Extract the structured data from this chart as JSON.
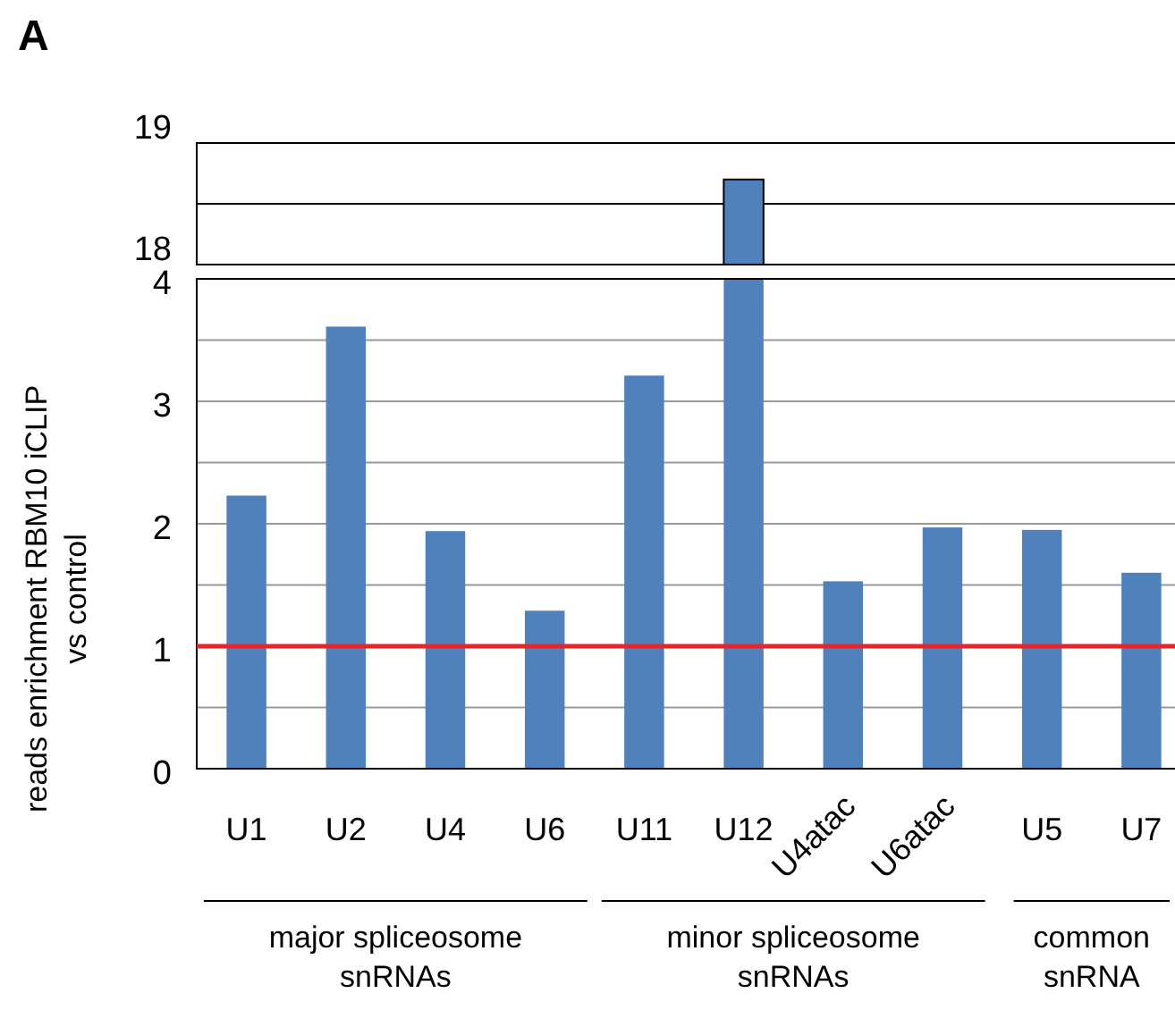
{
  "chart_data": [
    {
      "type": "bar",
      "title": "A",
      "categories": [
        null,
        null,
        null,
        null,
        null,
        null,
        null,
        null,
        null,
        null
      ],
      "values": [
        null,
        null,
        null,
        null,
        null,
        18.7,
        null,
        null,
        null,
        null
      ],
      "color": "#4f81bd",
      "ylim": [
        18,
        19
      ],
      "yticks": [
        18,
        {
          "value": 18.5,
          "label": null
        },
        19
      ],
      "grid": "y",
      "tick_labels": "y"
    },
    {
      "type": "bar",
      "ylabel": "reads enrichment RBM10 iCLIP vs control",
      "categories": [
        "U1",
        "U2",
        "U4",
        "U6",
        "U11",
        "U12",
        "U4atac",
        "U6atac",
        "U5",
        "U7"
      ],
      "values": [
        2.23,
        3.61,
        1.94,
        1.29,
        3.21,
        4,
        1.53,
        1.97,
        1.95,
        1.6
      ],
      "color": "#4f81bd",
      "ylim": [
        0,
        4
      ],
      "yticks": [
        0,
        {
          "value": 0.5,
          "label": null
        },
        1,
        {
          "value": 1.5,
          "label": null
        },
        2,
        {
          "value": 2.5,
          "label": null
        },
        3,
        {
          "value": 3.5,
          "label": null
        },
        4
      ],
      "grid": "y",
      "ref_lines": [
        {
          "axis": "y",
          "value": 1,
          "color": "#e8262a"
        }
      ],
      "annotations": [
        "major spliceosome snRNAs",
        "minor spliceosome snRNAs",
        "common snRNA"
      ]
    }
  ]
}
